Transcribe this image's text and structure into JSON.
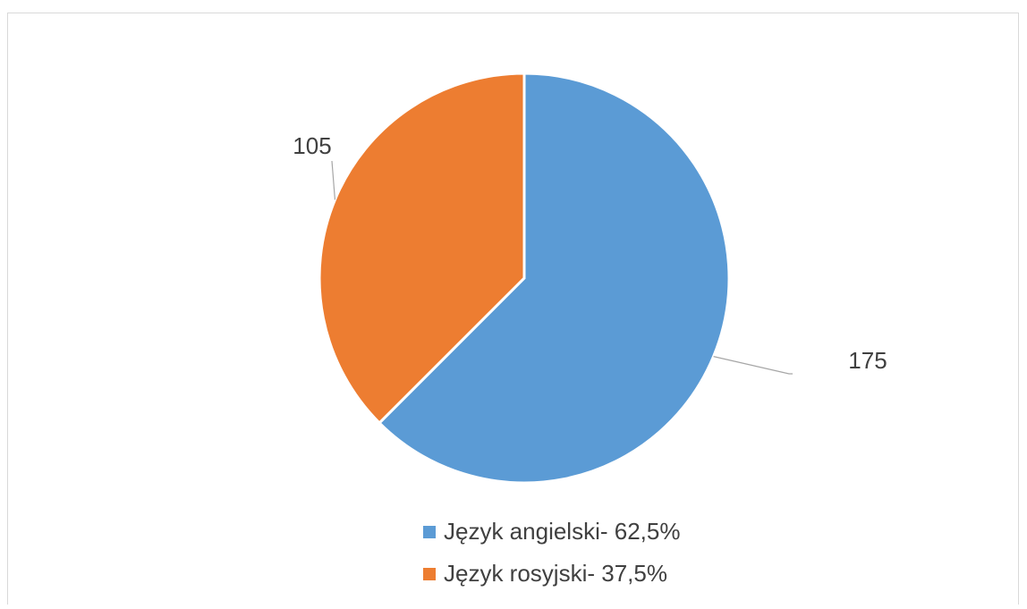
{
  "chart_data": {
    "type": "pie",
    "categories": [
      "Język angielski- 62,5%",
      "Język rosyjski- 37,5%"
    ],
    "values": [
      175,
      105
    ],
    "colors": [
      "#5b9bd5",
      "#ed7d31"
    ],
    "legend": "bottom"
  }
}
